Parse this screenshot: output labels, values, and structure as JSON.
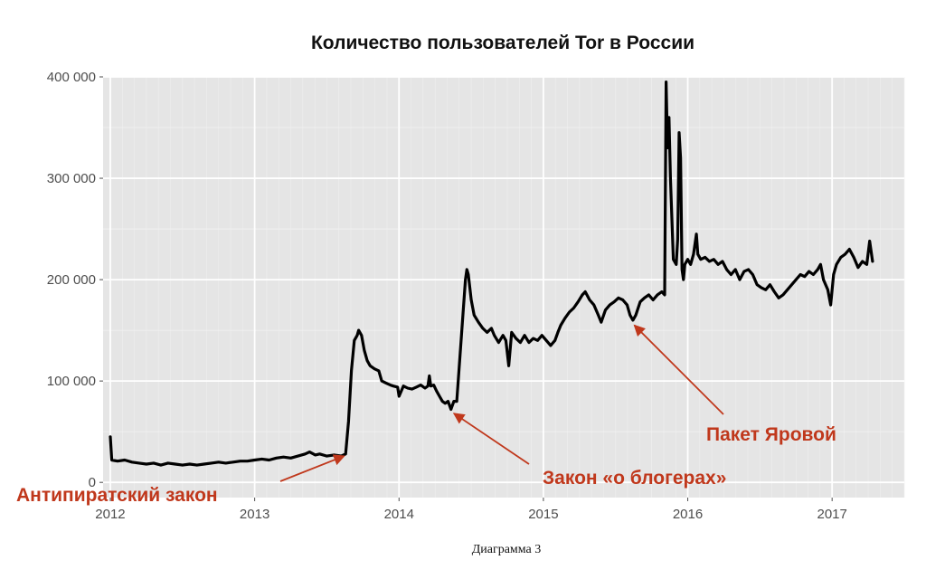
{
  "chart_data": {
    "type": "line",
    "title": "Количество пользователей Tor в России",
    "caption": "Диаграмма 3",
    "xlabel": "",
    "ylabel": "",
    "xlim": [
      2011.95,
      2017.5
    ],
    "ylim": [
      -15000,
      400000
    ],
    "grid": true,
    "x_ticks": [
      {
        "value": 2012,
        "label": "2012"
      },
      {
        "value": 2013,
        "label": "2013"
      },
      {
        "value": 2014,
        "label": "2014"
      },
      {
        "value": 2015,
        "label": "2015"
      },
      {
        "value": 2016,
        "label": "2016"
      },
      {
        "value": 2017,
        "label": "2017"
      }
    ],
    "y_ticks": [
      {
        "value": 0,
        "label": "0"
      },
      {
        "value": 100000,
        "label": "100 000"
      },
      {
        "value": 200000,
        "label": "200 000"
      },
      {
        "value": 300000,
        "label": "300 000"
      },
      {
        "value": 400000,
        "label": "400 000"
      }
    ],
    "series": [
      {
        "color": "#000000",
        "points": [
          [
            2012.0,
            45000
          ],
          [
            2012.01,
            22000
          ],
          [
            2012.05,
            21000
          ],
          [
            2012.1,
            22000
          ],
          [
            2012.15,
            20000
          ],
          [
            2012.2,
            19000
          ],
          [
            2012.25,
            18000
          ],
          [
            2012.3,
            19000
          ],
          [
            2012.35,
            17000
          ],
          [
            2012.4,
            19000
          ],
          [
            2012.45,
            18000
          ],
          [
            2012.5,
            17000
          ],
          [
            2012.55,
            18000
          ],
          [
            2012.6,
            17000
          ],
          [
            2012.65,
            18000
          ],
          [
            2012.7,
            19000
          ],
          [
            2012.75,
            20000
          ],
          [
            2012.8,
            19000
          ],
          [
            2012.85,
            20000
          ],
          [
            2012.9,
            21000
          ],
          [
            2012.95,
            21000
          ],
          [
            2013.0,
            22000
          ],
          [
            2013.05,
            23000
          ],
          [
            2013.1,
            22000
          ],
          [
            2013.15,
            24000
          ],
          [
            2013.2,
            25000
          ],
          [
            2013.25,
            24000
          ],
          [
            2013.3,
            26000
          ],
          [
            2013.35,
            28000
          ],
          [
            2013.38,
            30000
          ],
          [
            2013.42,
            27000
          ],
          [
            2013.45,
            28000
          ],
          [
            2013.5,
            26000
          ],
          [
            2013.55,
            27000
          ],
          [
            2013.6,
            26000
          ],
          [
            2013.63,
            28000
          ],
          [
            2013.65,
            60000
          ],
          [
            2013.67,
            110000
          ],
          [
            2013.69,
            140000
          ],
          [
            2013.71,
            145000
          ],
          [
            2013.72,
            150000
          ],
          [
            2013.74,
            145000
          ],
          [
            2013.76,
            130000
          ],
          [
            2013.78,
            120000
          ],
          [
            2013.8,
            115000
          ],
          [
            2013.83,
            112000
          ],
          [
            2013.86,
            110000
          ],
          [
            2013.88,
            100000
          ],
          [
            2013.91,
            98000
          ],
          [
            2013.94,
            96000
          ],
          [
            2013.96,
            95000
          ],
          [
            2013.99,
            94000
          ],
          [
            2014.0,
            85000
          ],
          [
            2014.03,
            95000
          ],
          [
            2014.06,
            93000
          ],
          [
            2014.09,
            92000
          ],
          [
            2014.12,
            94000
          ],
          [
            2014.15,
            96000
          ],
          [
            2014.18,
            93000
          ],
          [
            2014.2,
            95000
          ],
          [
            2014.21,
            105000
          ],
          [
            2014.22,
            95000
          ],
          [
            2014.24,
            96000
          ],
          [
            2014.26,
            90000
          ],
          [
            2014.28,
            85000
          ],
          [
            2014.3,
            80000
          ],
          [
            2014.32,
            78000
          ],
          [
            2014.34,
            80000
          ],
          [
            2014.36,
            72000
          ],
          [
            2014.38,
            80000
          ],
          [
            2014.4,
            80000
          ],
          [
            2014.42,
            120000
          ],
          [
            2014.44,
            160000
          ],
          [
            2014.46,
            200000
          ],
          [
            2014.47,
            210000
          ],
          [
            2014.48,
            205000
          ],
          [
            2014.5,
            180000
          ],
          [
            2014.52,
            165000
          ],
          [
            2014.55,
            158000
          ],
          [
            2014.58,
            152000
          ],
          [
            2014.61,
            148000
          ],
          [
            2014.64,
            152000
          ],
          [
            2014.66,
            145000
          ],
          [
            2014.69,
            138000
          ],
          [
            2014.72,
            145000
          ],
          [
            2014.74,
            140000
          ],
          [
            2014.76,
            115000
          ],
          [
            2014.78,
            148000
          ],
          [
            2014.81,
            142000
          ],
          [
            2014.84,
            138000
          ],
          [
            2014.87,
            145000
          ],
          [
            2014.9,
            138000
          ],
          [
            2014.93,
            142000
          ],
          [
            2014.96,
            140000
          ],
          [
            2014.99,
            145000
          ],
          [
            2015.02,
            140000
          ],
          [
            2015.05,
            135000
          ],
          [
            2015.08,
            140000
          ],
          [
            2015.1,
            148000
          ],
          [
            2015.12,
            155000
          ],
          [
            2015.15,
            162000
          ],
          [
            2015.18,
            168000
          ],
          [
            2015.21,
            172000
          ],
          [
            2015.24,
            178000
          ],
          [
            2015.27,
            185000
          ],
          [
            2015.29,
            188000
          ],
          [
            2015.32,
            180000
          ],
          [
            2015.35,
            175000
          ],
          [
            2015.38,
            165000
          ],
          [
            2015.4,
            158000
          ],
          [
            2015.43,
            170000
          ],
          [
            2015.46,
            175000
          ],
          [
            2015.49,
            178000
          ],
          [
            2015.52,
            182000
          ],
          [
            2015.55,
            180000
          ],
          [
            2015.58,
            175000
          ],
          [
            2015.6,
            165000
          ],
          [
            2015.62,
            160000
          ],
          [
            2015.64,
            165000
          ],
          [
            2015.67,
            178000
          ],
          [
            2015.7,
            182000
          ],
          [
            2015.73,
            185000
          ],
          [
            2015.76,
            180000
          ],
          [
            2015.79,
            185000
          ],
          [
            2015.82,
            188000
          ],
          [
            2015.84,
            185000
          ],
          [
            2015.85,
            395000
          ],
          [
            2015.86,
            330000
          ],
          [
            2015.87,
            360000
          ],
          [
            2015.88,
            300000
          ],
          [
            2015.9,
            220000
          ],
          [
            2015.92,
            215000
          ],
          [
            2015.93,
            240000
          ],
          [
            2015.94,
            345000
          ],
          [
            2015.95,
            320000
          ],
          [
            2015.96,
            210000
          ],
          [
            2015.97,
            200000
          ],
          [
            2015.98,
            215000
          ],
          [
            2016.0,
            220000
          ],
          [
            2016.02,
            215000
          ],
          [
            2016.04,
            225000
          ],
          [
            2016.06,
            245000
          ],
          [
            2016.07,
            225000
          ],
          [
            2016.09,
            220000
          ],
          [
            2016.12,
            222000
          ],
          [
            2016.15,
            218000
          ],
          [
            2016.18,
            220000
          ],
          [
            2016.21,
            215000
          ],
          [
            2016.24,
            218000
          ],
          [
            2016.27,
            210000
          ],
          [
            2016.3,
            205000
          ],
          [
            2016.33,
            210000
          ],
          [
            2016.36,
            200000
          ],
          [
            2016.39,
            208000
          ],
          [
            2016.42,
            210000
          ],
          [
            2016.45,
            205000
          ],
          [
            2016.48,
            195000
          ],
          [
            2016.51,
            192000
          ],
          [
            2016.54,
            190000
          ],
          [
            2016.57,
            195000
          ],
          [
            2016.6,
            188000
          ],
          [
            2016.63,
            182000
          ],
          [
            2016.66,
            185000
          ],
          [
            2016.69,
            190000
          ],
          [
            2016.72,
            195000
          ],
          [
            2016.75,
            200000
          ],
          [
            2016.78,
            205000
          ],
          [
            2016.81,
            203000
          ],
          [
            2016.84,
            208000
          ],
          [
            2016.87,
            205000
          ],
          [
            2016.9,
            210000
          ],
          [
            2016.92,
            215000
          ],
          [
            2016.94,
            200000
          ],
          [
            2016.97,
            190000
          ],
          [
            2016.99,
            175000
          ],
          [
            2017.01,
            205000
          ],
          [
            2017.03,
            215000
          ],
          [
            2017.06,
            222000
          ],
          [
            2017.09,
            225000
          ],
          [
            2017.12,
            230000
          ],
          [
            2017.15,
            222000
          ],
          [
            2017.18,
            212000
          ],
          [
            2017.21,
            218000
          ],
          [
            2017.24,
            215000
          ],
          [
            2017.26,
            238000
          ],
          [
            2017.28,
            218000
          ]
        ]
      }
    ],
    "annotations": [
      {
        "text": "Антипиратский закон",
        "target": [
          2013.62,
          26000
        ],
        "color": "#c0381c"
      },
      {
        "text": "Закон «о блогерах»",
        "target": [
          2014.38,
          68000
        ],
        "color": "#c0381c"
      },
      {
        "text": "Пакет Яровой",
        "target": [
          2015.63,
          155000
        ],
        "color": "#c0381c"
      }
    ]
  }
}
